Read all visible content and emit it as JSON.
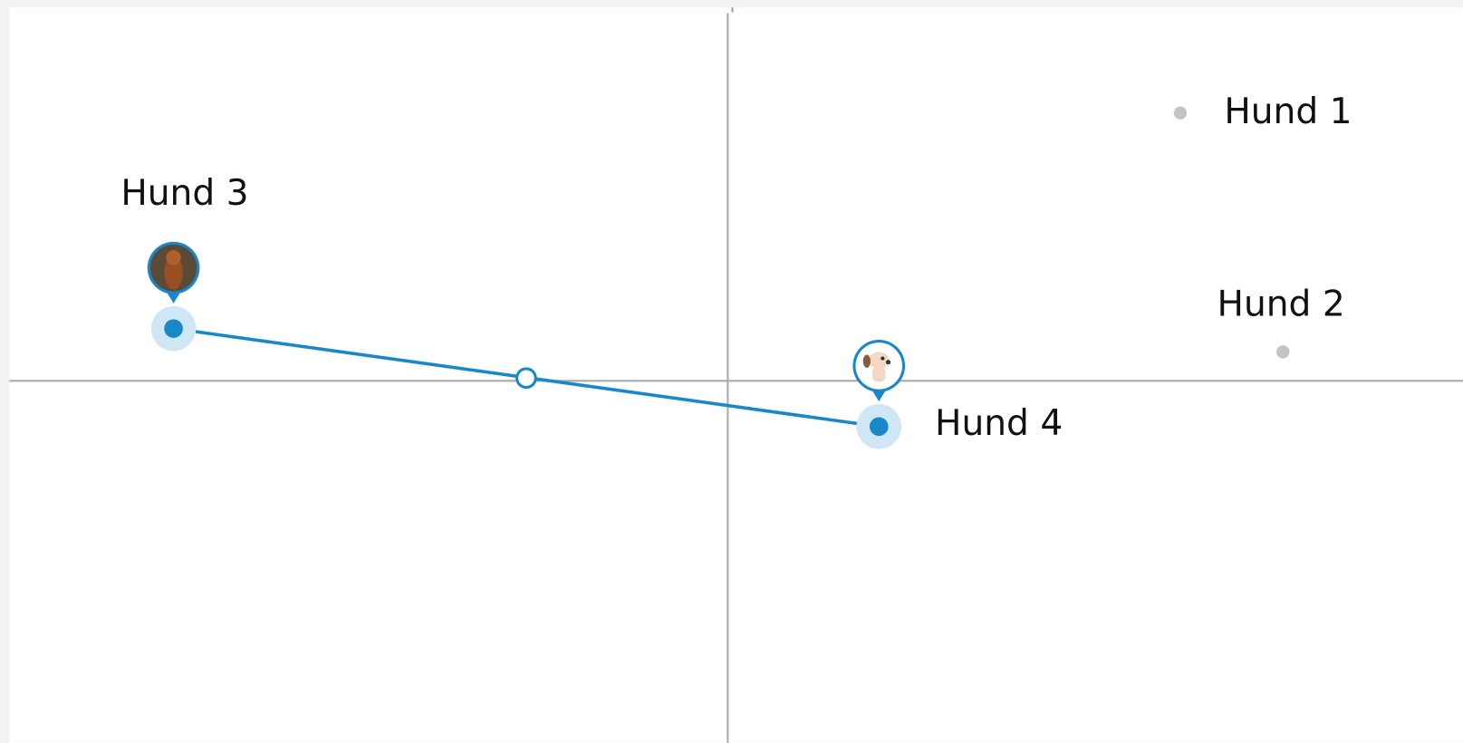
{
  "points": [
    {
      "label": "Hund 1"
    },
    {
      "label": "Hund 2"
    },
    {
      "label": "Hund 3"
    },
    {
      "label": "Hund 4"
    }
  ]
}
